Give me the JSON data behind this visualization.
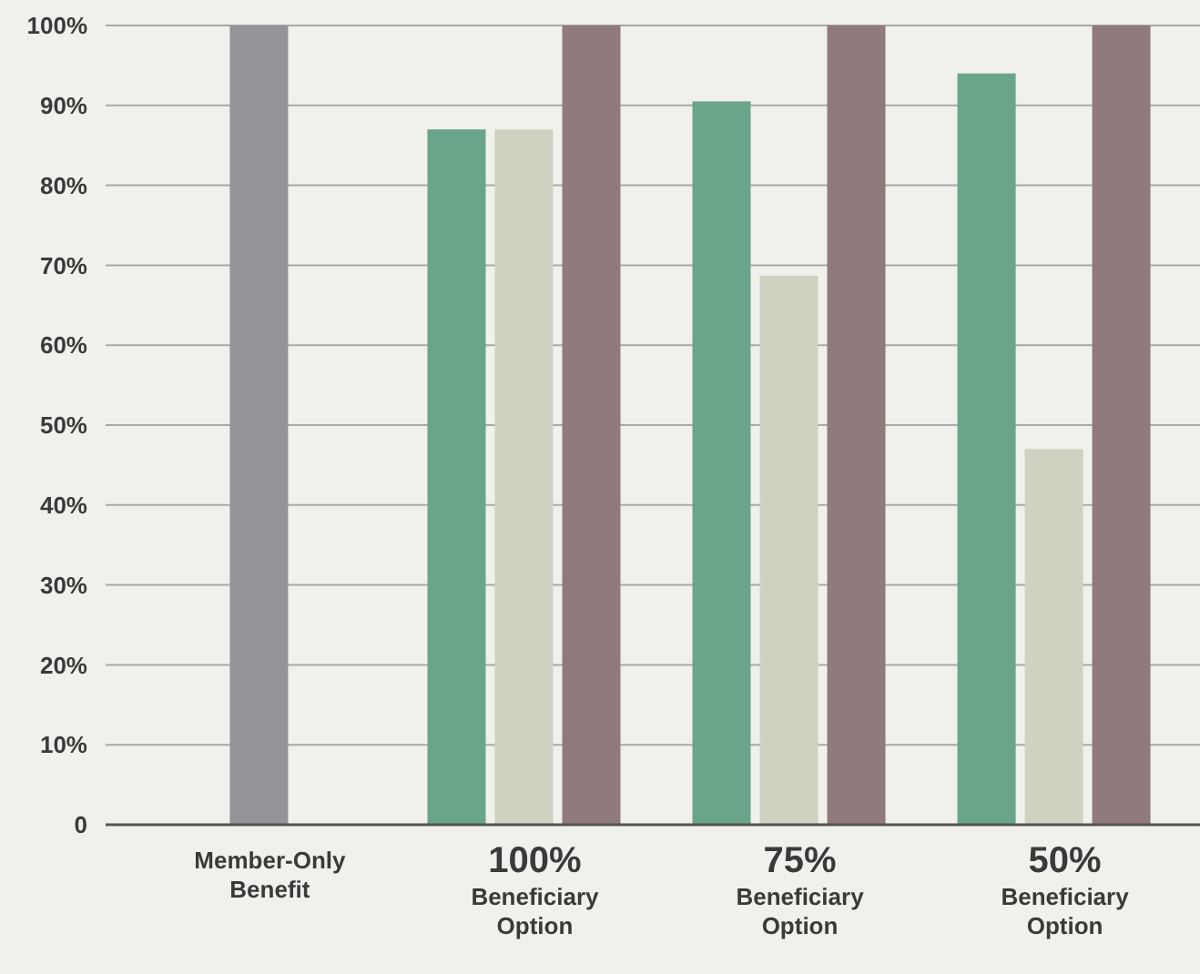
{
  "chart_data": {
    "type": "bar",
    "categories": [
      "Member-Only\nBenefit",
      "100%\nBeneficiary\nOption",
      "75%\nBeneficiary\nOption",
      "50%\nBeneficiary\nOption"
    ],
    "series": [
      {
        "color": "#939598",
        "values": [
          100,
          null,
          null,
          null
        ]
      },
      {
        "color": "#6aa58a",
        "values": [
          null,
          87,
          90.5,
          94
        ]
      },
      {
        "color": "#cdd3c0",
        "values": [
          null,
          87,
          68.7,
          47
        ]
      },
      {
        "color": "#917a7c",
        "values": [
          null,
          100,
          100,
          100
        ]
      }
    ],
    "ylim": [
      0,
      100
    ],
    "yticks": [
      0,
      {
        "value": 10,
        "label": "10%"
      },
      {
        "value": 20,
        "label": "20%"
      },
      {
        "value": 30,
        "label": "30%"
      },
      {
        "value": 40,
        "label": "40%"
      },
      {
        "value": 50,
        "label": "50%"
      },
      {
        "value": 60,
        "label": "60%"
      },
      {
        "value": 70,
        "label": "70%"
      },
      {
        "value": 80,
        "label": "80%"
      },
      {
        "value": 90,
        "label": "90%"
      },
      {
        "value": 100,
        "label": "100%"
      }
    ],
    "grid": "y"
  }
}
